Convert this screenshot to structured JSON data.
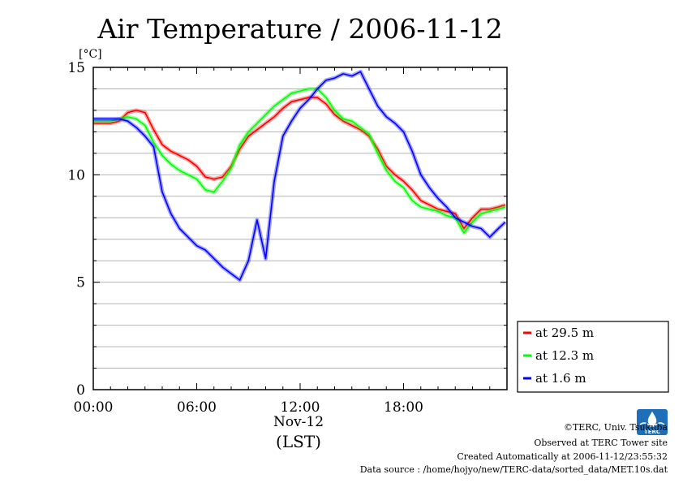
{
  "chart_data": {
    "type": "line",
    "title": "Air Temperature / 2006-11-12",
    "ylabel": "[°C]",
    "xlabel": "(LST)",
    "date_label": "Nov-12",
    "x_unit": "hour",
    "xlim": [
      0,
      24
    ],
    "ylim": [
      0,
      15
    ],
    "x_ticks": [
      {
        "value": 0,
        "label": "00:00"
      },
      {
        "value": 6,
        "label": "06:00"
      },
      {
        "value": 12,
        "label": "12:00"
      },
      {
        "value": 18,
        "label": "18:00"
      }
    ],
    "y_ticks": [
      {
        "value": 0,
        "label": "0"
      },
      {
        "value": 5,
        "label": "5"
      },
      {
        "value": 10,
        "label": "10"
      },
      {
        "value": 15,
        "label": "15"
      }
    ],
    "grid": true,
    "legend_position": "right",
    "x": [
      0,
      0.5,
      1,
      1.5,
      2,
      2.5,
      3,
      3.5,
      4,
      4.5,
      5,
      5.5,
      6,
      6.5,
      7,
      7.5,
      8,
      8.5,
      9,
      9.5,
      10,
      10.5,
      11,
      11.5,
      12,
      12.5,
      13,
      13.5,
      14,
      14.5,
      15,
      15.5,
      16,
      16.5,
      17,
      17.5,
      18,
      18.5,
      19,
      19.5,
      20,
      20.5,
      21,
      21.5,
      22,
      22.5,
      23,
      23.5,
      23.9
    ],
    "series": [
      {
        "name": "at 29.5 m",
        "color": "#ff0000",
        "values": [
          12.4,
          12.4,
          12.4,
          12.5,
          12.9,
          13.0,
          12.9,
          12.1,
          11.4,
          11.1,
          10.9,
          10.7,
          10.4,
          9.9,
          9.8,
          9.9,
          10.4,
          11.2,
          11.8,
          12.1,
          12.4,
          12.7,
          13.1,
          13.4,
          13.5,
          13.6,
          13.6,
          13.3,
          12.8,
          12.5,
          12.3,
          12.1,
          11.8,
          11.2,
          10.4,
          10.0,
          9.7,
          9.3,
          8.8,
          8.6,
          8.4,
          8.3,
          8.2,
          7.5,
          8.0,
          8.4,
          8.4,
          8.5,
          8.6
        ]
      },
      {
        "name": "at 12.3 m",
        "color": "#00ff00",
        "values": [
          12.5,
          12.5,
          12.5,
          12.6,
          12.7,
          12.6,
          12.3,
          11.5,
          10.9,
          10.5,
          10.2,
          10.0,
          9.8,
          9.3,
          9.2,
          9.7,
          10.3,
          11.4,
          12.0,
          12.4,
          12.8,
          13.2,
          13.5,
          13.8,
          13.9,
          14.0,
          14.0,
          13.6,
          13.0,
          12.6,
          12.5,
          12.2,
          11.9,
          11.0,
          10.2,
          9.7,
          9.4,
          8.8,
          8.5,
          8.4,
          8.3,
          8.1,
          8.0,
          7.3,
          7.8,
          8.2,
          8.3,
          8.4,
          8.5
        ]
      },
      {
        "name": "at 1.6 m",
        "color": "#0000ff",
        "values": [
          12.6,
          12.6,
          12.6,
          12.6,
          12.5,
          12.2,
          11.8,
          11.3,
          9.2,
          8.2,
          7.5,
          7.1,
          6.7,
          6.5,
          6.1,
          5.7,
          5.4,
          5.1,
          6.0,
          7.9,
          6.1,
          9.7,
          11.8,
          12.5,
          13.1,
          13.5,
          14.0,
          14.4,
          14.5,
          14.7,
          14.6,
          14.8,
          14.0,
          13.2,
          12.7,
          12.4,
          12.0,
          11.1,
          10.0,
          9.4,
          8.9,
          8.5,
          8.0,
          7.8,
          7.6,
          7.5,
          7.1,
          7.5,
          7.8
        ]
      }
    ]
  },
  "chart_label_lines": {
    "series_lines_note": ""
  },
  "footer": {
    "copyright": "©TERC, Univ. Tsukuba",
    "observed": "Observed at TERC Tower site",
    "created": "Created Automatically at 2006-11-12/23:55:32",
    "source": "Data source : /home/hojyo/new/TERC-data/sorted_data/MET.10s.dat"
  },
  "logo": {
    "text": "TERC",
    "color": "#1e6fb8"
  }
}
